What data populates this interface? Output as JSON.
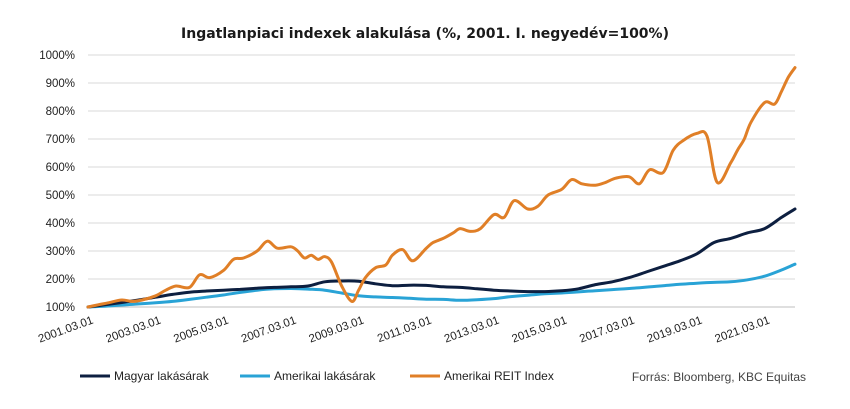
{
  "chart_data": {
    "type": "line",
    "title": "Ingatlanpiaci indexek alakulása (%, 2001. I. negyedév=100%)",
    "xlabel": "",
    "ylabel": "",
    "source": "Forrás: Bloomberg, KBC Equitas",
    "ylim": [
      100,
      1000
    ],
    "y_ticks": [
      100,
      200,
      300,
      400,
      500,
      600,
      700,
      800,
      900,
      1000
    ],
    "y_tick_labels": [
      "100%",
      "200%",
      "300%",
      "400%",
      "500%",
      "600%",
      "700%",
      "800%",
      "900%",
      "1000%"
    ],
    "x_ticks": [
      2001.0,
      2003.0,
      2005.0,
      2007.0,
      2009.0,
      2011.0,
      2013.0,
      2015.0,
      2017.0,
      2019.0,
      2021.0
    ],
    "x_tick_labels": [
      "2001.03.01",
      "2003.03.01",
      "2005.03.01",
      "2007.03.01",
      "2009.03.01",
      "2011.03.01",
      "2013.03.01",
      "2015.03.01",
      "2017.03.01",
      "2019.03.01",
      "2021.03.01"
    ],
    "xlim": [
      2001.0,
      2021.9
    ],
    "grid": true,
    "legend_position": "bottom",
    "series": [
      {
        "name": "Magyar lakásárak",
        "color": "#0d1f40",
        "x": [
          2001.0,
          2001.5,
          2002.0,
          2002.5,
          2003.0,
          2003.5,
          2004.0,
          2004.5,
          2005.0,
          2005.5,
          2006.0,
          2006.5,
          2007.0,
          2007.5,
          2008.0,
          2008.5,
          2009.0,
          2009.5,
          2010.0,
          2010.5,
          2011.0,
          2011.5,
          2012.0,
          2012.5,
          2013.0,
          2013.5,
          2014.0,
          2014.5,
          2015.0,
          2015.5,
          2016.0,
          2016.5,
          2017.0,
          2017.5,
          2018.0,
          2018.5,
          2019.0,
          2019.5,
          2020.0,
          2020.5,
          2021.0,
          2021.5,
          2021.9
        ],
        "values": [
          100,
          108,
          116,
          125,
          135,
          145,
          153,
          157,
          160,
          163,
          167,
          170,
          172,
          175,
          190,
          193,
          192,
          183,
          176,
          178,
          177,
          172,
          170,
          165,
          160,
          157,
          155,
          155,
          158,
          165,
          180,
          190,
          205,
          225,
          245,
          265,
          290,
          330,
          345,
          365,
          380,
          420,
          450
        ]
      },
      {
        "name": "Amerikai lakásárak",
        "color": "#29a3d6",
        "x": [
          2001.0,
          2001.5,
          2002.0,
          2002.5,
          2003.0,
          2003.5,
          2004.0,
          2004.5,
          2005.0,
          2005.5,
          2006.0,
          2006.5,
          2007.0,
          2007.5,
          2008.0,
          2008.5,
          2009.0,
          2009.5,
          2010.0,
          2010.5,
          2011.0,
          2011.5,
          2012.0,
          2012.5,
          2013.0,
          2013.5,
          2014.0,
          2014.5,
          2015.0,
          2015.5,
          2016.0,
          2016.5,
          2017.0,
          2017.5,
          2018.0,
          2018.5,
          2019.0,
          2019.5,
          2020.0,
          2020.5,
          2021.0,
          2021.5,
          2021.9
        ],
        "values": [
          100,
          103,
          107,
          111,
          115,
          120,
          127,
          135,
          143,
          152,
          160,
          165,
          166,
          164,
          160,
          150,
          140,
          136,
          134,
          131,
          128,
          127,
          124,
          126,
          130,
          137,
          142,
          147,
          150,
          154,
          158,
          162,
          166,
          171,
          176,
          181,
          185,
          188,
          190,
          197,
          210,
          232,
          253
        ]
      },
      {
        "name": "Amerikai REIT Index",
        "color": "#e07f27",
        "x": [
          2001.0,
          2001.3,
          2001.6,
          2002.0,
          2002.3,
          2002.6,
          2003.0,
          2003.3,
          2003.6,
          2004.0,
          2004.3,
          2004.6,
          2005.0,
          2005.3,
          2005.6,
          2006.0,
          2006.3,
          2006.6,
          2007.0,
          2007.2,
          2007.4,
          2007.6,
          2007.8,
          2008.0,
          2008.2,
          2008.5,
          2008.8,
          2009.0,
          2009.2,
          2009.5,
          2009.8,
          2010.0,
          2010.3,
          2010.6,
          2011.0,
          2011.2,
          2011.5,
          2011.8,
          2012.0,
          2012.3,
          2012.6,
          2013.0,
          2013.3,
          2013.6,
          2014.0,
          2014.3,
          2014.6,
          2015.0,
          2015.3,
          2015.6,
          2016.0,
          2016.3,
          2016.6,
          2017.0,
          2017.3,
          2017.6,
          2018.0,
          2018.3,
          2018.6,
          2019.0,
          2019.3,
          2019.6,
          2020.0,
          2020.2,
          2020.4,
          2020.6,
          2021.0,
          2021.3,
          2021.5,
          2021.7,
          2021.9
        ],
        "values": [
          100,
          108,
          115,
          125,
          120,
          125,
          140,
          160,
          175,
          170,
          215,
          205,
          230,
          270,
          275,
          300,
          335,
          310,
          315,
          300,
          275,
          285,
          270,
          280,
          260,
          175,
          120,
          160,
          205,
          240,
          250,
          285,
          305,
          265,
          310,
          330,
          345,
          365,
          380,
          370,
          380,
          430,
          420,
          480,
          450,
          460,
          500,
          520,
          555,
          540,
          535,
          545,
          560,
          565,
          540,
          590,
          580,
          660,
          695,
          720,
          710,
          545,
          615,
          660,
          700,
          760,
          830,
          825,
          870,
          920,
          955
        ]
      }
    ]
  }
}
